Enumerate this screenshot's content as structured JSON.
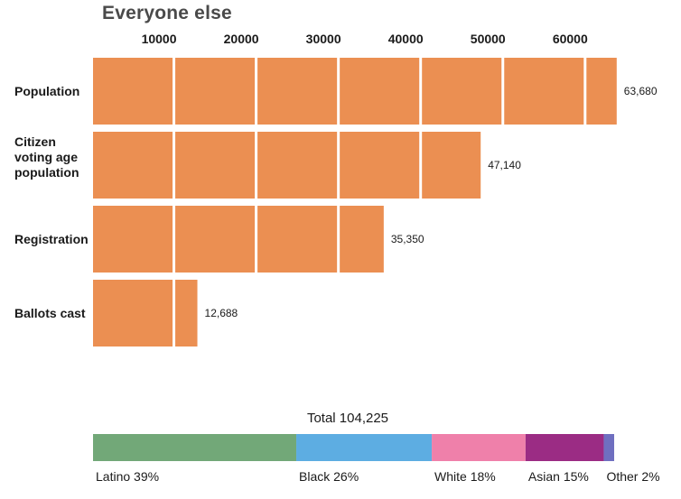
{
  "chart_data": [
    {
      "type": "bar",
      "orientation": "horizontal",
      "title": "Everyone else",
      "categories": [
        "Population",
        "Citizen voting age population",
        "Registration",
        "Ballots cast"
      ],
      "category_lines": [
        [
          "Population"
        ],
        [
          "Citizen",
          "voting age",
          "population"
        ],
        [
          "Registration"
        ],
        [
          "Ballots cast"
        ]
      ],
      "values": [
        63680,
        47140,
        35350,
        12688
      ],
      "value_labels": [
        "63,680",
        "47,140",
        "35,350",
        "12,688"
      ],
      "xticks": [
        10000,
        20000,
        30000,
        40000,
        50000,
        60000
      ],
      "xtick_labels": [
        "10000",
        "20000",
        "30000",
        "40000",
        "50000",
        "60000"
      ],
      "xlim": [
        0,
        63680
      ],
      "xaxis_position": "top",
      "segment_size": 10000,
      "grid": false,
      "color": "#eb8f52"
    },
    {
      "type": "bar",
      "orientation": "horizontal",
      "stacked": true,
      "title": "Total 104,225",
      "series": [
        {
          "name": "Latino",
          "percent": 39,
          "label": "Latino 39%",
          "color": "#72a878"
        },
        {
          "name": "Black",
          "percent": 26,
          "label": "Black 26%",
          "color": "#5dade2"
        },
        {
          "name": "White",
          "percent": 18,
          "label": "White 18%",
          "color": "#ef80aa"
        },
        {
          "name": "Asian",
          "percent": 15,
          "label": "Asian 15%",
          "color": "#9b2c84"
        },
        {
          "name": "Other",
          "percent": 2,
          "label": "Other 2%",
          "color": "#6f6fc0"
        }
      ],
      "xlim": [
        0,
        100
      ]
    }
  ]
}
